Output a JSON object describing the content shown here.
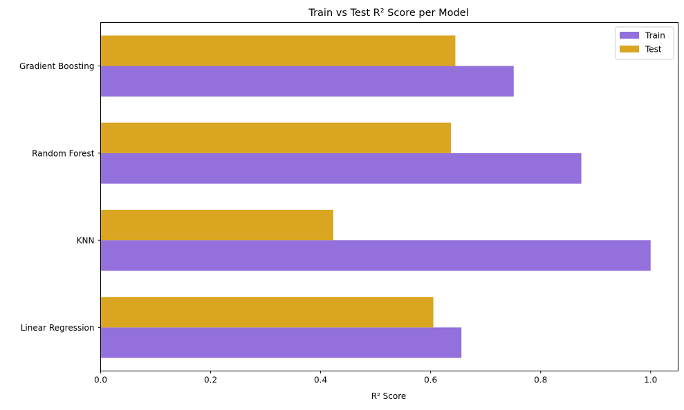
{
  "chart_data": {
    "type": "bar",
    "orientation": "horizontal",
    "title": "Train vs Test R² Score per Model",
    "xlabel": "R² Score",
    "ylabel": "",
    "categories": [
      "Linear Regression",
      "KNN",
      "Random Forest",
      "Gradient Boosting"
    ],
    "series": [
      {
        "name": "Train",
        "color": "#9370db",
        "values": [
          0.656,
          1.0,
          0.874,
          0.751
        ]
      },
      {
        "name": "Test",
        "color": "#daa520",
        "values": [
          0.605,
          0.423,
          0.637,
          0.645
        ]
      }
    ],
    "xlim": [
      0,
      1.05
    ],
    "xticks": [
      0.0,
      0.2,
      0.4,
      0.6,
      0.8,
      1.0
    ],
    "xtick_labels": [
      "0.0",
      "0.2",
      "0.4",
      "0.6",
      "0.8",
      "1.0"
    ],
    "grid": false,
    "legend_position": "top-right"
  }
}
